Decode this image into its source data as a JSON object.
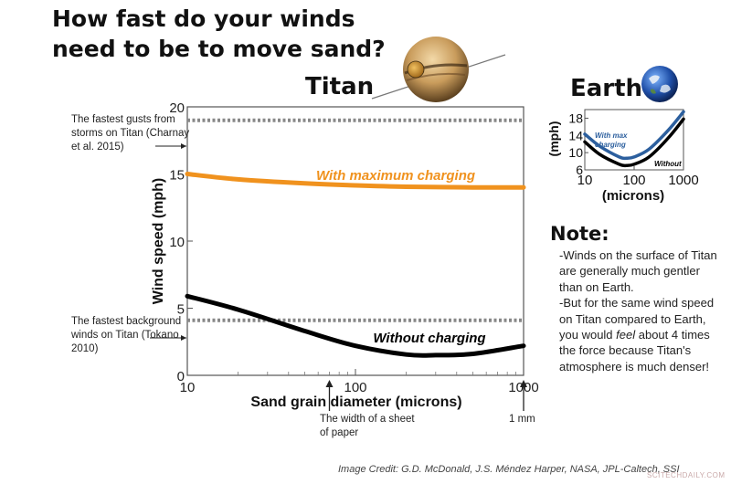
{
  "headline": "How fast do your winds need to be to move sand?",
  "titan_label": "Titan",
  "earth_label": "Earth",
  "chart_data": [
    {
      "type": "line",
      "xlabel": "Sand grain diameter (microns)",
      "ylabel": "Wind speed (mph)",
      "xscale": "log",
      "xlim": [
        10,
        1000
      ],
      "ylim": [
        0,
        20
      ],
      "xticks": [
        "10",
        "100",
        "1000"
      ],
      "yticks": [
        "0",
        "5",
        "10",
        "15",
        "20"
      ],
      "grid": false,
      "series": [
        {
          "name": "With maximum charging",
          "color": "#f0921e",
          "x": [
            10,
            20,
            50,
            100,
            200,
            500,
            1000
          ],
          "y": [
            15.0,
            14.6,
            14.3,
            14.15,
            14.05,
            14.0,
            14.0
          ]
        },
        {
          "name": "Without charging",
          "color": "#000000",
          "x": [
            10,
            20,
            50,
            100,
            200,
            300,
            500,
            1000
          ],
          "y": [
            5.9,
            4.9,
            3.3,
            2.2,
            1.55,
            1.5,
            1.6,
            2.2
          ]
        }
      ],
      "reference_lines": [
        {
          "y": 19.0,
          "style": "dotted",
          "color": "#888888",
          "label": "The fastest gusts from storms on Titan (Charnay et al. 2015)"
        },
        {
          "y": 4.1,
          "style": "dotted",
          "color": "#888888",
          "label": "The fastest background winds on Titan (Tokano 2010)"
        }
      ],
      "annotations": [
        {
          "text": "The width of a sheet of paper",
          "x": 70
        },
        {
          "text": "1 mm",
          "x": 1000
        }
      ]
    },
    {
      "type": "line",
      "xlabel": "(microns)",
      "ylabel": "(mph)",
      "xscale": "log",
      "xlim": [
        10,
        1000
      ],
      "ylim": [
        6,
        20
      ],
      "xticks": [
        "10",
        "100",
        "1000"
      ],
      "yticks": [
        "6",
        "10",
        "14",
        "18"
      ],
      "series": [
        {
          "name": "With max charging",
          "color": "#2c5f9e",
          "x": [
            10,
            20,
            50,
            70,
            100,
            200,
            500,
            1000
          ],
          "y": [
            14.3,
            11.5,
            9.0,
            8.7,
            9.0,
            10.8,
            15.3,
            19.5
          ]
        },
        {
          "name": "Without",
          "color": "#000000",
          "x": [
            10,
            20,
            50,
            70,
            100,
            200,
            500,
            1000
          ],
          "y": [
            12.5,
            9.6,
            7.3,
            7.0,
            7.3,
            9.0,
            13.5,
            17.8
          ]
        }
      ]
    }
  ],
  "note": {
    "title": "Note:",
    "line1": "-Winds on the surface of Titan are generally much gentler than on Earth.",
    "line2_pre": "-But for the same wind speed on Titan compared to Earth, you would ",
    "line2_em": "feel",
    "line2_post": " about 4 times the force because Titan's atmosphere is much denser!"
  },
  "credit": "Image Credit: G.D. McDonald, J.S. Méndez Harper, NASA, JPL-Caltech, SSI",
  "watermark": "SCITECHDAILY.COM",
  "colors": {
    "orange": "#f0921e",
    "blue": "#2c5f9e",
    "gray_ref": "#888888"
  }
}
